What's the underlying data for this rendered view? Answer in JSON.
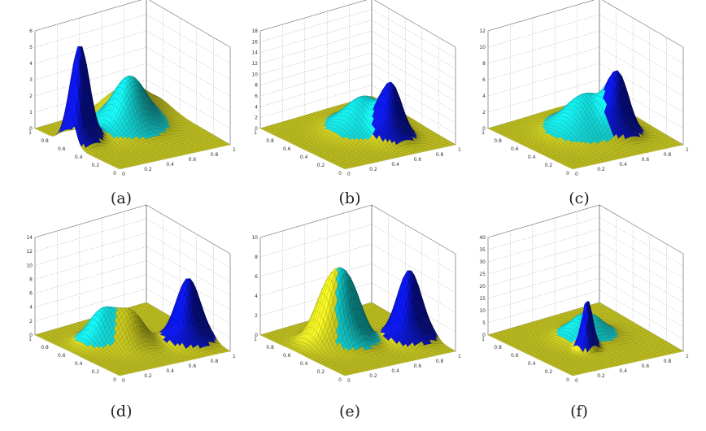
{
  "chart_data": [
    {
      "type": "surface",
      "caption": "(a)",
      "zlim": [
        0,
        6
      ],
      "zticks": [
        "0",
        "1",
        "2",
        "3",
        "4",
        "5",
        "6"
      ],
      "yticks": [
        "1",
        "0.8",
        "0.6",
        "0.4",
        "0.2",
        "0"
      ],
      "xticks": [
        "0",
        "0.2",
        "0.4",
        "0.6",
        "0.8",
        "1"
      ],
      "colors": [
        "#0a14c8",
        "#12d2d2",
        "#c8c81e"
      ],
      "peaks": [
        {
          "x": 0.1,
          "y": 0.6,
          "height": 6.0,
          "width": 0.07
        },
        {
          "x": 0.55,
          "y": 0.6,
          "height": 3.0,
          "width": 0.13
        },
        {
          "x": 0.75,
          "y": 0.85,
          "height": 1.5,
          "width": 0.15
        }
      ]
    },
    {
      "type": "surface",
      "caption": "(b)",
      "zlim": [
        0,
        18
      ],
      "zticks": [
        "0",
        "2",
        "4",
        "6",
        "8",
        "10",
        "12",
        "14",
        "16",
        "18"
      ],
      "yticks": [
        "1",
        "0.8",
        "0.6",
        "0.4",
        "0.2",
        "0"
      ],
      "xticks": [
        "0",
        "0.2",
        "0.4",
        "0.6",
        "0.8",
        "1"
      ],
      "colors": [
        "#0a14c8",
        "#12d2d2",
        "#c8c81e"
      ],
      "peaks": [
        {
          "x": 0.6,
          "y": 0.55,
          "height": 6.0,
          "width": 0.15
        },
        {
          "x": 0.65,
          "y": 0.3,
          "height": 9.0,
          "width": 0.08
        }
      ]
    },
    {
      "type": "surface",
      "caption": "(c)",
      "zlim": [
        0,
        12
      ],
      "zticks": [
        "0",
        "2",
        "4",
        "6",
        "8",
        "10",
        "12"
      ],
      "yticks": [
        "1",
        "0.8",
        "0.6",
        "0.4",
        "0.2",
        "0"
      ],
      "xticks": [
        "0",
        "0.2",
        "0.4",
        "0.6",
        "0.8",
        "1"
      ],
      "colors": [
        "#0a14c8",
        "#12d2d2",
        "#c8c81e"
      ],
      "peaks": [
        {
          "x": 0.55,
          "y": 0.55,
          "height": 4.5,
          "width": 0.16
        },
        {
          "x": 0.68,
          "y": 0.35,
          "height": 6.5,
          "width": 0.08
        }
      ]
    },
    {
      "type": "surface",
      "caption": "(d)",
      "zlim": [
        0,
        14
      ],
      "zticks": [
        "0",
        "2",
        "4",
        "6",
        "8",
        "10",
        "12",
        "14"
      ],
      "yticks": [
        "1",
        "0.8",
        "0.6",
        "0.4",
        "0.2",
        "0"
      ],
      "xticks": [
        "0",
        "0.2",
        "0.4",
        "0.6",
        "0.8",
        "1"
      ],
      "colors": [
        "#0a14c8",
        "#12d2d2",
        "#c8c81e"
      ],
      "peaks": [
        {
          "x": 0.3,
          "y": 0.6,
          "height": 4.5,
          "width": 0.1
        },
        {
          "x": 0.45,
          "y": 0.45,
          "height": 4.5,
          "width": 0.1
        },
        {
          "x": 0.85,
          "y": 0.3,
          "height": 9.0,
          "width": 0.09
        }
      ]
    },
    {
      "type": "surface",
      "caption": "(e)",
      "zlim": [
        0,
        10
      ],
      "zticks": [
        "0",
        "2",
        "4",
        "6",
        "8",
        "10"
      ],
      "yticks": [
        "1",
        "0.8",
        "0.6",
        "0.4",
        "0.2",
        "0"
      ],
      "xticks": [
        "0",
        "0.2",
        "0.4",
        "0.6",
        "0.8",
        "1"
      ],
      "colors": [
        "#0a14c8",
        "#12d2d2",
        "#c8c81e"
      ],
      "peaks": [
        {
          "x": 0.3,
          "y": 0.6,
          "height": 5.0,
          "width": 0.1
        },
        {
          "x": 0.42,
          "y": 0.5,
          "height": 5.5,
          "width": 0.1
        },
        {
          "x": 0.85,
          "y": 0.35,
          "height": 7.0,
          "width": 0.09
        }
      ]
    },
    {
      "type": "surface",
      "caption": "(f)",
      "zlim": [
        0,
        40
      ],
      "zticks": [
        "0",
        "5",
        "10",
        "15",
        "20",
        "25",
        "30",
        "35",
        "40"
      ],
      "yticks": [
        "1",
        "0.8",
        "0.6",
        "0.4",
        "0.2",
        "0"
      ],
      "xticks": [
        "0",
        "0.2",
        "0.4",
        "0.6",
        "0.8",
        "1"
      ],
      "colors": [
        "#0a14c8",
        "#12d2d2",
        "#c8c81e"
      ],
      "peaks": [
        {
          "x": 0.55,
          "y": 0.55,
          "height": 10.0,
          "width": 0.12
        },
        {
          "x": 0.4,
          "y": 0.35,
          "height": 20.0,
          "width": 0.04
        }
      ]
    }
  ]
}
